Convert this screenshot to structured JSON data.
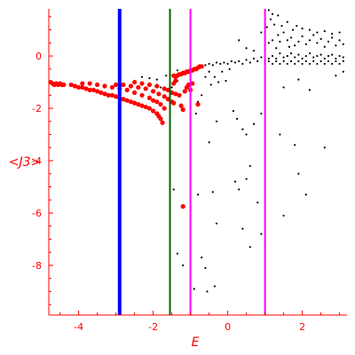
{
  "chart_data": {
    "type": "scatter",
    "title": "",
    "xlabel": "E",
    "ylabel": "<J3>",
    "xlim": [
      -4.8,
      3.2
    ],
    "ylim": [
      -9.9,
      1.8
    ],
    "grid": false,
    "legend": "none",
    "x_ticks": [
      -4,
      -2,
      0,
      2
    ],
    "y_ticks": [
      0,
      -2,
      -4,
      -6,
      -8
    ],
    "x_tick_labels": [
      "-4",
      "-2",
      "0",
      "2"
    ],
    "y_tick_labels": [
      "0",
      "-2",
      "-4",
      "-6",
      "-8"
    ],
    "colors": {
      "axes": "#ff0000",
      "red_series": "#ff0000",
      "black_series": "#000000",
      "blue_line": "#0000ff",
      "green_line": "#006400",
      "magenta_line": "#ff00ff"
    },
    "vertical_lines": [
      {
        "x": -2.9,
        "color": "#0000ff",
        "width": 4
      },
      {
        "x": -1.55,
        "color": "#006400",
        "width": 2
      },
      {
        "x": -1.0,
        "color": "#ff00ff",
        "width": 2
      },
      {
        "x": 1.0,
        "color": "#ff00ff",
        "width": 2
      }
    ],
    "series": [
      {
        "color": "#ff0000",
        "points": [
          [
            -4.75,
            -1.0
          ],
          [
            -4.7,
            -1.05
          ],
          [
            -4.65,
            -1.1
          ],
          [
            -4.6,
            -1.05
          ],
          [
            -4.55,
            -1.1
          ],
          [
            -4.5,
            -1.05
          ],
          [
            -4.45,
            -1.1
          ],
          [
            -4.4,
            -1.1
          ],
          [
            -4.2,
            -1.1
          ],
          [
            -4.1,
            -1.15
          ],
          [
            -4.0,
            -1.2
          ],
          [
            -3.9,
            -1.2
          ],
          [
            -3.8,
            -1.25
          ],
          [
            -3.7,
            -1.3
          ],
          [
            -3.6,
            -1.3
          ],
          [
            -3.5,
            -1.35
          ],
          [
            -3.4,
            -1.4
          ],
          [
            -3.3,
            -1.45
          ],
          [
            -3.2,
            -1.5
          ],
          [
            -3.1,
            -1.5
          ],
          [
            -3.0,
            -1.55
          ],
          [
            -2.9,
            -1.6
          ],
          [
            -2.8,
            -1.65
          ],
          [
            -2.7,
            -1.7
          ],
          [
            -2.6,
            -1.75
          ],
          [
            -2.5,
            -1.8
          ],
          [
            -2.4,
            -1.85
          ],
          [
            -2.3,
            -1.9
          ],
          [
            -2.2,
            -1.95
          ],
          [
            -2.1,
            -2.0
          ],
          [
            -2.0,
            -2.1
          ],
          [
            -1.9,
            -2.2
          ],
          [
            -1.85,
            -2.3
          ],
          [
            -1.8,
            -2.4
          ],
          [
            -1.75,
            -2.55
          ],
          [
            -3.9,
            -1.05
          ],
          [
            -3.7,
            -1.05
          ],
          [
            -3.5,
            -1.1
          ],
          [
            -3.3,
            -1.15
          ],
          [
            -3.1,
            -1.2
          ],
          [
            -2.9,
            -1.25
          ],
          [
            -2.7,
            -1.3
          ],
          [
            -2.5,
            -1.4
          ],
          [
            -2.3,
            -1.5
          ],
          [
            -2.1,
            -1.6
          ],
          [
            -2.0,
            -1.7
          ],
          [
            -1.9,
            -1.75
          ],
          [
            -1.8,
            -1.85
          ],
          [
            -1.7,
            -2.0
          ],
          [
            -3.0,
            -1.1
          ],
          [
            -2.8,
            -1.1
          ],
          [
            -2.6,
            -1.15
          ],
          [
            -2.4,
            -1.2
          ],
          [
            -2.2,
            -1.25
          ],
          [
            -2.0,
            -1.35
          ],
          [
            -1.85,
            -1.45
          ],
          [
            -1.7,
            -1.55
          ],
          [
            -1.6,
            -1.65
          ],
          [
            -1.5,
            -1.75
          ],
          [
            -1.45,
            -1.8
          ],
          [
            -2.5,
            -1.0
          ],
          [
            -2.3,
            -1.05
          ],
          [
            -2.1,
            -1.1
          ],
          [
            -1.9,
            -1.15
          ],
          [
            -1.7,
            -1.25
          ],
          [
            -1.6,
            -1.3
          ],
          [
            -1.5,
            -1.4
          ],
          [
            -1.4,
            -1.45
          ],
          [
            -1.3,
            -1.5
          ],
          [
            -1.25,
            -1.9
          ],
          [
            -1.2,
            -2.05
          ],
          [
            -1.15,
            -1.35
          ],
          [
            -1.1,
            -1.2
          ],
          [
            -1.05,
            -1.1
          ],
          [
            -1.0,
            -1.3
          ],
          [
            -0.95,
            -1.05
          ],
          [
            -1.45,
            -0.75
          ],
          [
            -1.4,
            -0.8
          ],
          [
            -1.35,
            -0.75
          ],
          [
            -1.3,
            -0.7
          ],
          [
            -1.25,
            -0.7
          ],
          [
            -1.2,
            -0.65
          ],
          [
            -1.15,
            -0.65
          ],
          [
            -1.1,
            -0.6
          ],
          [
            -1.05,
            -0.6
          ],
          [
            -1.0,
            -0.55
          ],
          [
            -0.95,
            -0.55
          ],
          [
            -0.9,
            -0.5
          ],
          [
            -0.85,
            -0.5
          ],
          [
            -0.8,
            -0.45
          ],
          [
            -0.75,
            -0.4
          ],
          [
            -0.7,
            -0.4
          ],
          [
            -1.45,
            -1.05
          ],
          [
            -1.4,
            -0.95
          ],
          [
            -1.2,
            -5.75
          ],
          [
            -0.8,
            -1.85
          ]
        ]
      },
      {
        "color": "#000000",
        "points": [
          [
            -2.3,
            -0.8
          ],
          [
            -2.1,
            -0.85
          ],
          [
            -1.9,
            -0.9
          ],
          [
            -1.8,
            -1.2
          ],
          [
            -1.65,
            -0.75
          ],
          [
            -1.5,
            -1.2
          ],
          [
            -1.35,
            -0.55
          ],
          [
            -1.35,
            -0.95
          ],
          [
            -1.2,
            -0.7
          ],
          [
            -0.85,
            -2.2
          ],
          [
            -0.8,
            -1.75
          ],
          [
            -0.7,
            -1.5
          ],
          [
            -0.6,
            -0.8
          ],
          [
            -0.5,
            -0.6
          ],
          [
            -0.45,
            -1.1
          ],
          [
            -0.35,
            -0.8
          ],
          [
            -0.25,
            -1.0
          ],
          [
            -0.15,
            -0.6
          ],
          [
            -0.05,
            -0.95
          ],
          [
            0.05,
            -0.5
          ],
          [
            -0.6,
            -0.35
          ],
          [
            -0.5,
            -0.3
          ],
          [
            -0.4,
            -0.35
          ],
          [
            -0.3,
            -0.25
          ],
          [
            -0.2,
            -0.3
          ],
          [
            -0.1,
            -0.25
          ],
          [
            0.0,
            -0.3
          ],
          [
            0.1,
            -0.2
          ],
          [
            0.2,
            -0.25
          ],
          [
            0.3,
            -0.2
          ],
          [
            0.4,
            -0.3
          ],
          [
            0.5,
            -0.15
          ],
          [
            0.6,
            -0.25
          ],
          [
            0.7,
            -0.1
          ],
          [
            0.8,
            -0.2
          ],
          [
            0.9,
            -0.05
          ],
          [
            1.0,
            -0.15
          ],
          [
            1.1,
            -0.1
          ],
          [
            1.2,
            0.0
          ],
          [
            1.3,
            -0.1
          ],
          [
            1.4,
            0.1
          ],
          [
            1.5,
            -0.05
          ],
          [
            1.6,
            0.0
          ],
          [
            1.7,
            0.1
          ],
          [
            1.8,
            -0.05
          ],
          [
            1.9,
            0.05
          ],
          [
            2.0,
            -0.1
          ],
          [
            2.1,
            0.0
          ],
          [
            2.2,
            0.1
          ],
          [
            2.3,
            -0.05
          ],
          [
            2.4,
            0.0
          ],
          [
            2.5,
            0.05
          ],
          [
            2.6,
            -0.1
          ],
          [
            2.7,
            0.0
          ],
          [
            2.8,
            0.05
          ],
          [
            2.9,
            -0.1
          ],
          [
            3.0,
            0.0
          ],
          [
            3.1,
            -0.05
          ],
          [
            1.0,
            -0.3
          ],
          [
            1.2,
            -0.3
          ],
          [
            1.4,
            -0.3
          ],
          [
            1.6,
            -0.3
          ],
          [
            1.8,
            -0.3
          ],
          [
            2.0,
            -0.3
          ],
          [
            2.2,
            -0.3
          ],
          [
            2.4,
            -0.3
          ],
          [
            2.6,
            -0.3
          ],
          [
            2.8,
            -0.3
          ],
          [
            3.0,
            -0.3
          ],
          [
            1.1,
            -0.2
          ],
          [
            1.3,
            -0.2
          ],
          [
            1.5,
            -0.2
          ],
          [
            1.7,
            -0.2
          ],
          [
            1.9,
            -0.2
          ],
          [
            2.1,
            -0.2
          ],
          [
            2.3,
            -0.2
          ],
          [
            2.5,
            -0.2
          ],
          [
            2.7,
            -0.2
          ],
          [
            2.9,
            -0.2
          ],
          [
            3.1,
            -0.2
          ],
          [
            1.0,
            0.4
          ],
          [
            1.1,
            0.5
          ],
          [
            1.2,
            0.6
          ],
          [
            1.3,
            0.3
          ],
          [
            1.35,
            0.8
          ],
          [
            1.4,
            0.55
          ],
          [
            1.5,
            0.9
          ],
          [
            1.6,
            0.6
          ],
          [
            1.65,
            0.35
          ],
          [
            1.7,
            0.7
          ],
          [
            1.8,
            0.4
          ],
          [
            1.9,
            0.55
          ],
          [
            2.0,
            0.75
          ],
          [
            2.1,
            0.45
          ],
          [
            2.2,
            0.6
          ],
          [
            2.3,
            0.8
          ],
          [
            2.4,
            0.5
          ],
          [
            2.5,
            0.65
          ],
          [
            2.6,
            0.35
          ],
          [
            2.7,
            0.55
          ],
          [
            2.8,
            0.7
          ],
          [
            2.9,
            0.4
          ],
          [
            3.0,
            0.6
          ],
          [
            3.1,
            0.45
          ],
          [
            0.9,
            0.9
          ],
          [
            1.05,
            1.1
          ],
          [
            1.15,
            1.4
          ],
          [
            1.25,
            1.2
          ],
          [
            1.35,
            1.55
          ],
          [
            1.45,
            1.15
          ],
          [
            1.6,
            1.3
          ],
          [
            1.75,
            1.0
          ],
          [
            1.85,
            1.15
          ],
          [
            2.0,
            1.05
          ],
          [
            2.2,
            1.0
          ],
          [
            2.4,
            0.9
          ],
          [
            2.6,
            0.95
          ],
          [
            2.8,
            0.85
          ],
          [
            3.0,
            0.9
          ],
          [
            0.3,
            0.6
          ],
          [
            0.5,
            0.3
          ],
          [
            0.7,
            0.2
          ],
          [
            1.1,
            1.75
          ],
          [
            1.2,
            1.6
          ],
          [
            1.0,
            1.7
          ],
          [
            1.5,
            -1.2
          ],
          [
            1.9,
            -0.9
          ],
          [
            2.2,
            -1.3
          ],
          [
            2.9,
            -0.75
          ],
          [
            3.1,
            -0.6
          ],
          [
            0.15,
            -2.1
          ],
          [
            0.25,
            -2.4
          ],
          [
            0.5,
            -3.0
          ],
          [
            0.7,
            -2.6
          ],
          [
            0.9,
            -2.2
          ],
          [
            0.4,
            -2.8
          ],
          [
            -0.5,
            -3.3
          ],
          [
            -0.3,
            -2.5
          ],
          [
            1.4,
            -3.0
          ],
          [
            1.8,
            -3.4
          ],
          [
            2.6,
            -3.5
          ],
          [
            0.6,
            -4.2
          ],
          [
            1.9,
            -4.5
          ],
          [
            2.1,
            -5.3
          ],
          [
            0.2,
            -4.8
          ],
          [
            -0.4,
            -5.2
          ],
          [
            -0.8,
            -5.3
          ],
          [
            0.3,
            -5.1
          ],
          [
            0.5,
            -4.7
          ],
          [
            0.8,
            -5.6
          ],
          [
            1.5,
            -6.1
          ],
          [
            -0.3,
            -6.4
          ],
          [
            0.9,
            -6.8
          ],
          [
            0.4,
            -6.6
          ],
          [
            1.0,
            -7.1
          ],
          [
            0.6,
            -7.3
          ],
          [
            -0.6,
            -8.1
          ],
          [
            -0.35,
            -8.8
          ],
          [
            -0.9,
            -8.9
          ],
          [
            -0.55,
            -9.0
          ],
          [
            -0.7,
            -7.7
          ],
          [
            -1.35,
            -7.55
          ],
          [
            -1.45,
            -5.1
          ],
          [
            -1.2,
            -8.0
          ]
        ]
      }
    ]
  }
}
